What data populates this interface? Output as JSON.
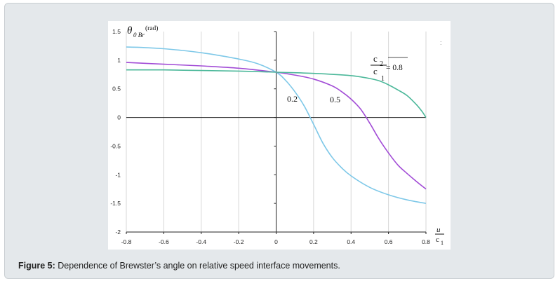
{
  "figure": {
    "caption_label": "Figure 5:",
    "caption_text": "Dependence of Brewster’s angle on relative speed interface movements."
  },
  "chart_data": {
    "type": "line",
    "title": "",
    "ylabel_symbol": "θ",
    "ylabel_sub": "0 Br",
    "ylabel_unit": "(rad)",
    "xlabel_num": "u",
    "xlabel_den": "c",
    "xlabel_den_sub": "1",
    "xlim": [
      -0.8,
      0.8
    ],
    "ylim": [
      -2,
      1.5
    ],
    "x_ticks": [
      -0.8,
      -0.6,
      -0.4,
      -0.2,
      0,
      0.2,
      0.4,
      0.6,
      0.8
    ],
    "x_tick_labels": [
      "-0.8",
      "-0.6",
      "-0.4",
      "-0.2",
      "0",
      "0.2",
      "0.4",
      "0.6",
      "0.8"
    ],
    "y_ticks": [
      -2,
      -1.5,
      -1,
      -0.5,
      0,
      0.5,
      1,
      1.5
    ],
    "y_tick_labels": [
      "-2",
      "-1.5",
      "-1",
      "-0.5",
      "0",
      "0.5",
      "1",
      "1.5"
    ],
    "grid": "vertical",
    "series": [
      {
        "name": "0.2",
        "color": "#7ec8e8",
        "x": [
          -0.8,
          -0.7,
          -0.6,
          -0.5,
          -0.4,
          -0.3,
          -0.2,
          -0.1,
          0,
          0.05,
          0.1,
          0.15,
          0.2,
          0.25,
          0.3,
          0.35,
          0.4,
          0.5,
          0.6,
          0.7,
          0.8
        ],
        "y": [
          1.23,
          1.22,
          1.2,
          1.17,
          1.13,
          1.08,
          1.02,
          0.94,
          0.79,
          0.65,
          0.45,
          0.2,
          -0.12,
          -0.45,
          -0.7,
          -0.88,
          -1.02,
          -1.22,
          -1.35,
          -1.44,
          -1.5
        ]
      },
      {
        "name": "0.5",
        "color": "#a24cd6",
        "x": [
          -0.8,
          -0.6,
          -0.4,
          -0.2,
          0,
          0.1,
          0.2,
          0.3,
          0.35,
          0.4,
          0.45,
          0.5,
          0.55,
          0.6,
          0.65,
          0.7,
          0.75,
          0.8
        ],
        "y": [
          0.96,
          0.93,
          0.9,
          0.86,
          0.79,
          0.74,
          0.67,
          0.55,
          0.45,
          0.32,
          0.15,
          -0.1,
          -0.38,
          -0.62,
          -0.83,
          -0.98,
          -1.12,
          -1.25
        ]
      },
      {
        "name": "0.8",
        "color": "#4cb89a",
        "x": [
          -0.8,
          -0.6,
          -0.4,
          -0.2,
          0,
          0.2,
          0.4,
          0.5,
          0.55,
          0.6,
          0.65,
          0.7,
          0.75,
          0.78,
          0.8
        ],
        "y": [
          0.83,
          0.83,
          0.82,
          0.81,
          0.79,
          0.77,
          0.73,
          0.68,
          0.64,
          0.57,
          0.48,
          0.38,
          0.22,
          0.1,
          0.0
        ]
      }
    ],
    "annotations": {
      "label_02": "0.2",
      "label_05": "0.5",
      "ratio_num": "c",
      "ratio_num_sub": "2",
      "ratio_den": "c",
      "ratio_den_sub": "1",
      "ratio_value": "= 0.8"
    },
    "stray_mark": ":"
  }
}
